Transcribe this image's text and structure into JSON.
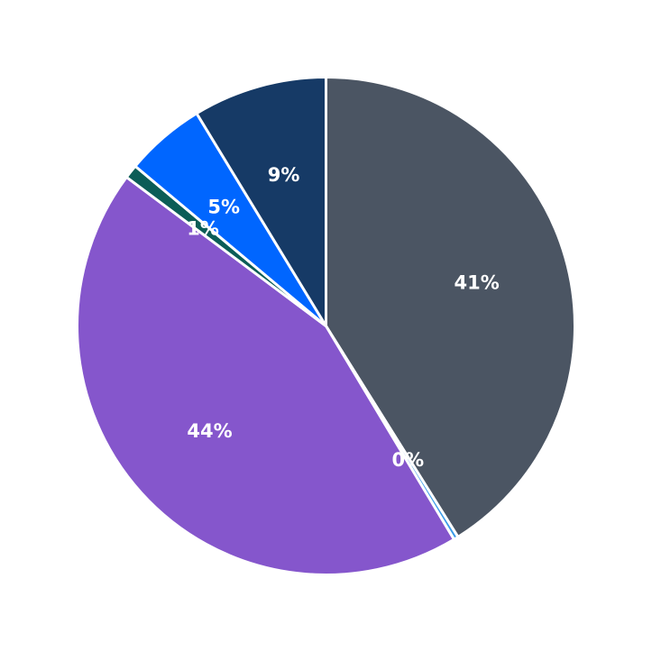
{
  "chart_data": {
    "type": "pie",
    "title": "",
    "start_angle": "12 o'clock",
    "direction": "clockwise",
    "legend": null,
    "slices": [
      {
        "label": "41%",
        "value": 41.1,
        "color": "#4b5563"
      },
      {
        "label": "0%",
        "value": 0.3,
        "color": "#3b9be8"
      },
      {
        "label": "44%",
        "value": 43.8,
        "color": "#8556cc"
      },
      {
        "label": "1%",
        "value": 0.9,
        "color": "#0b5d57"
      },
      {
        "label": "5%",
        "value": 5.2,
        "color": "#0066ff"
      },
      {
        "label": "9%",
        "value": 8.7,
        "color": "#163a66"
      }
    ]
  }
}
